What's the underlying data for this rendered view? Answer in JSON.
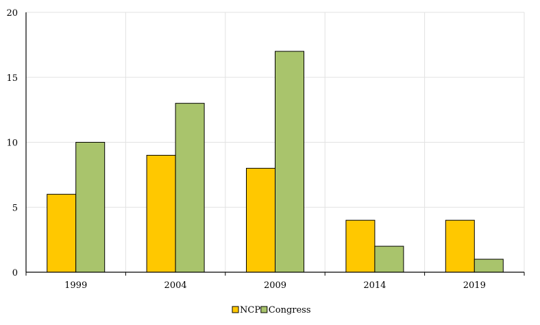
{
  "chart_data": {
    "type": "bar",
    "categories": [
      "1999",
      "2004",
      "2009",
      "2014",
      "2019"
    ],
    "series": [
      {
        "name": "NCP",
        "values": [
          6,
          9,
          8,
          4,
          4
        ],
        "color": "#FFC800"
      },
      {
        "name": "Congress",
        "values": [
          10,
          13,
          17,
          2,
          1
        ],
        "color": "#A9C46C"
      }
    ],
    "ylim": [
      0,
      20
    ],
    "yticks": [
      "0",
      "5",
      "10",
      "15",
      "20"
    ],
    "grid": true,
    "legend_position": "bottom-center"
  }
}
